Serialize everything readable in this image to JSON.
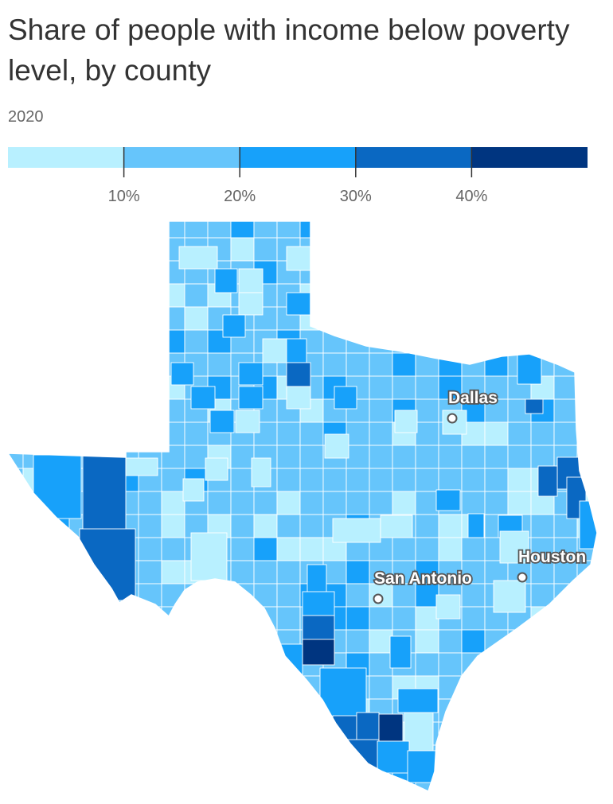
{
  "title": "Share of people with income below poverty level, by county",
  "subtitle": "2020",
  "legend": {
    "bins": [
      {
        "color": "#b8f0ff"
      },
      {
        "color": "#66c5fb"
      },
      {
        "color": "#17a1fa"
      },
      {
        "color": "#0a68c2"
      },
      {
        "color": "#003580"
      }
    ],
    "ticks": [
      "10%",
      "20%",
      "30%",
      "40%"
    ]
  },
  "map": {
    "region": "Texas",
    "cities": [
      {
        "name": "Dallas"
      },
      {
        "name": "San Antonio"
      },
      {
        "name": "Houston"
      }
    ]
  }
}
